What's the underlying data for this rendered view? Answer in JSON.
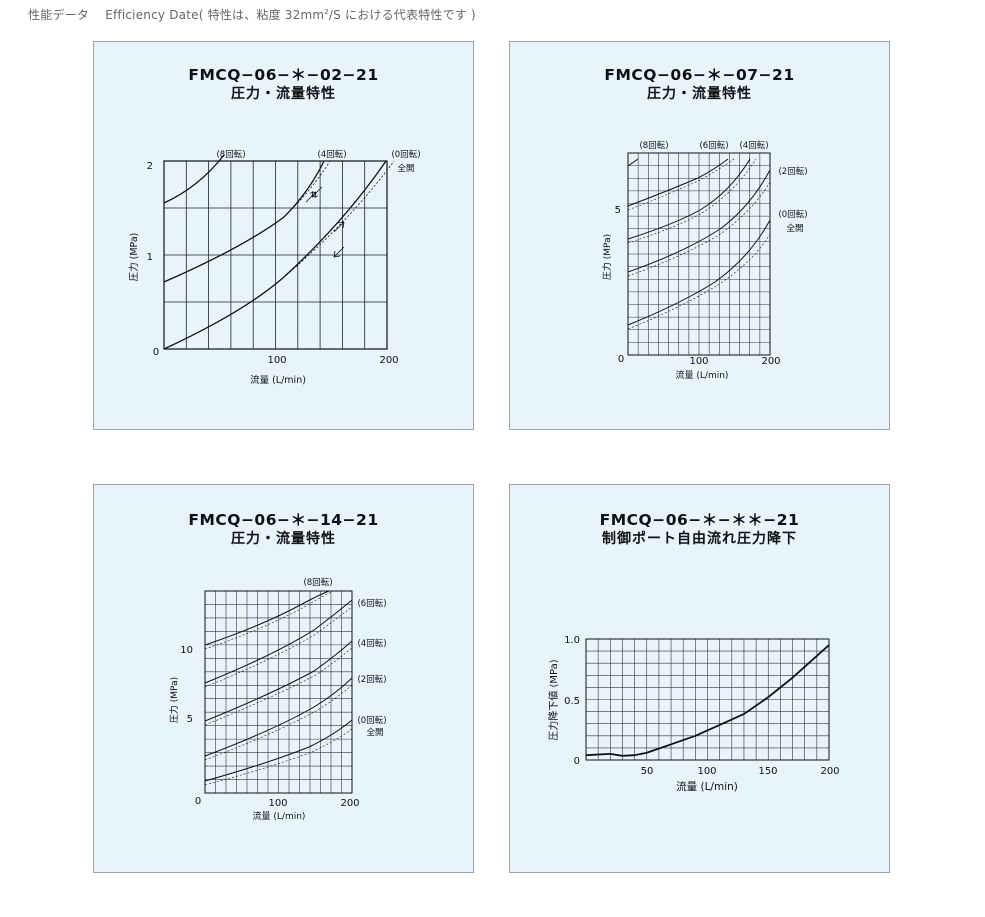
{
  "header": {
    "text_main": "性能データ　 Efficiency Date( 特性は、粘度 32mm",
    "text_sup": "2",
    "text_tail": "/S における代表特性です )"
  },
  "charts": [
    {
      "title": "FMCQ−06−＊−02−21",
      "subtitle": "圧力・流量特性",
      "xlabel": "流量 (L/min)",
      "ylabel": "圧力 (MPa)",
      "xticks": [
        "0",
        "100",
        "200"
      ],
      "yticks": [
        "1",
        "2"
      ],
      "annotations": [
        "(8回転)",
        "(4回転)",
        "(0回転)",
        "全開"
      ]
    },
    {
      "title": "FMCQ−06−＊−07−21",
      "subtitle": "圧力・流量特性",
      "xlabel": "流量 (L/min)",
      "ylabel": "圧力 (MPa)",
      "xticks": [
        "0",
        "100",
        "200"
      ],
      "yticks": [
        "5"
      ],
      "annotations": [
        "(8回転)",
        "(6回転)",
        "(4回転)",
        "(2回転)",
        "(0回転)",
        "全開"
      ]
    },
    {
      "title": "FMCQ−06−＊−14−21",
      "subtitle": "圧力・流量特性",
      "xlabel": "流量 (L/min)",
      "ylabel": "圧力 (MPa)",
      "xticks": [
        "0",
        "100",
        "200"
      ],
      "yticks": [
        "5",
        "10"
      ],
      "annotations": [
        "(8回転)",
        "(6回転)",
        "(4回転)",
        "(2回転)",
        "(0回転)",
        "全開"
      ]
    },
    {
      "title": "FMCQ−06−＊−＊＊−21",
      "subtitle": "制御ポート自由流れ圧力降下",
      "xlabel": "流量 (L/min)",
      "ylabel": "圧力降下値 (MPa)",
      "xticks": [
        "50",
        "100",
        "150",
        "200"
      ],
      "yticks": [
        "0",
        "0.5",
        "1.0"
      ]
    }
  ],
  "chart_data": [
    {
      "type": "line",
      "xlim": [
        0,
        200
      ],
      "ylim": [
        0,
        2
      ],
      "series": [
        {
          "name": "(8回転)",
          "x": [
            0,
            20,
            40,
            50
          ],
          "y": [
            1.57,
            1.76,
            1.93,
            2.0
          ]
        },
        {
          "name": "(4回転)",
          "x": [
            0,
            25,
            50,
            75,
            100,
            125,
            140
          ],
          "y": [
            0.72,
            0.9,
            1.07,
            1.26,
            1.48,
            1.75,
            1.98
          ]
        },
        {
          "name": "(0回転)",
          "x": [
            0,
            50,
            100,
            140,
            175,
            200
          ],
          "y": [
            0.04,
            0.28,
            0.62,
            0.98,
            1.45,
            1.95
          ]
        }
      ],
      "grid": true
    },
    {
      "type": "line",
      "xlim": [
        0,
        200
      ],
      "ylim": [
        0,
        8
      ],
      "series": [
        {
          "name": "(8回転)",
          "x": [
            0,
            5
          ],
          "y": [
            7.5,
            7.9
          ]
        },
        {
          "name": "(6回転)",
          "x": [
            0,
            40,
            80,
            110
          ],
          "y": [
            5.9,
            6.6,
            7.3,
            8.0
          ]
        },
        {
          "name": "(4回転)",
          "x": [
            0,
            50,
            100,
            140
          ],
          "y": [
            4.6,
            5.3,
            6.2,
            8.0
          ]
        },
        {
          "name": "(2回転)",
          "x": [
            0,
            50,
            100,
            150,
            200
          ],
          "y": [
            3.2,
            3.9,
            4.8,
            5.8,
            7.2
          ]
        },
        {
          "name": "(0回転)",
          "x": [
            0,
            50,
            100,
            150,
            200
          ],
          "y": [
            1.2,
            1.8,
            2.7,
            3.8,
            5.4
          ]
        }
      ],
      "grid": true
    },
    {
      "type": "line",
      "xlim": [
        0,
        200
      ],
      "ylim": [
        0,
        15
      ],
      "series": [
        {
          "name": "(8回転)",
          "x": [
            0,
            50,
            100,
            150,
            170
          ],
          "y": [
            11.3,
            12.2,
            13.0,
            14.2,
            15.0
          ]
        },
        {
          "name": "(6回転)",
          "x": [
            0,
            50,
            100,
            150,
            200
          ],
          "y": [
            9.2,
            10.3,
            11.3,
            12.3,
            13.5
          ]
        },
        {
          "name": "(4回転)",
          "x": [
            0,
            50,
            100,
            150,
            200
          ],
          "y": [
            7.0,
            8.0,
            9.0,
            10.0,
            11.3
          ]
        },
        {
          "name": "(2回転)",
          "x": [
            0,
            50,
            100,
            150,
            200
          ],
          "y": [
            4.5,
            5.5,
            6.5,
            7.5,
            8.8
          ]
        },
        {
          "name": "(0回転)",
          "x": [
            0,
            50,
            100,
            150,
            200
          ],
          "y": [
            1.2,
            2.2,
            3.2,
            4.3,
            6.0
          ]
        }
      ],
      "grid": true
    },
    {
      "type": "line",
      "xlim": [
        0,
        200
      ],
      "ylim": [
        0,
        1.0
      ],
      "series": [
        {
          "x": [
            0,
            20,
            30,
            40,
            50,
            70,
            90,
            110,
            130,
            150,
            170,
            200
          ],
          "y": [
            0.04,
            0.05,
            0.035,
            0.04,
            0.06,
            0.13,
            0.2,
            0.29,
            0.38,
            0.52,
            0.68,
            0.95
          ]
        }
      ],
      "grid": true
    }
  ]
}
